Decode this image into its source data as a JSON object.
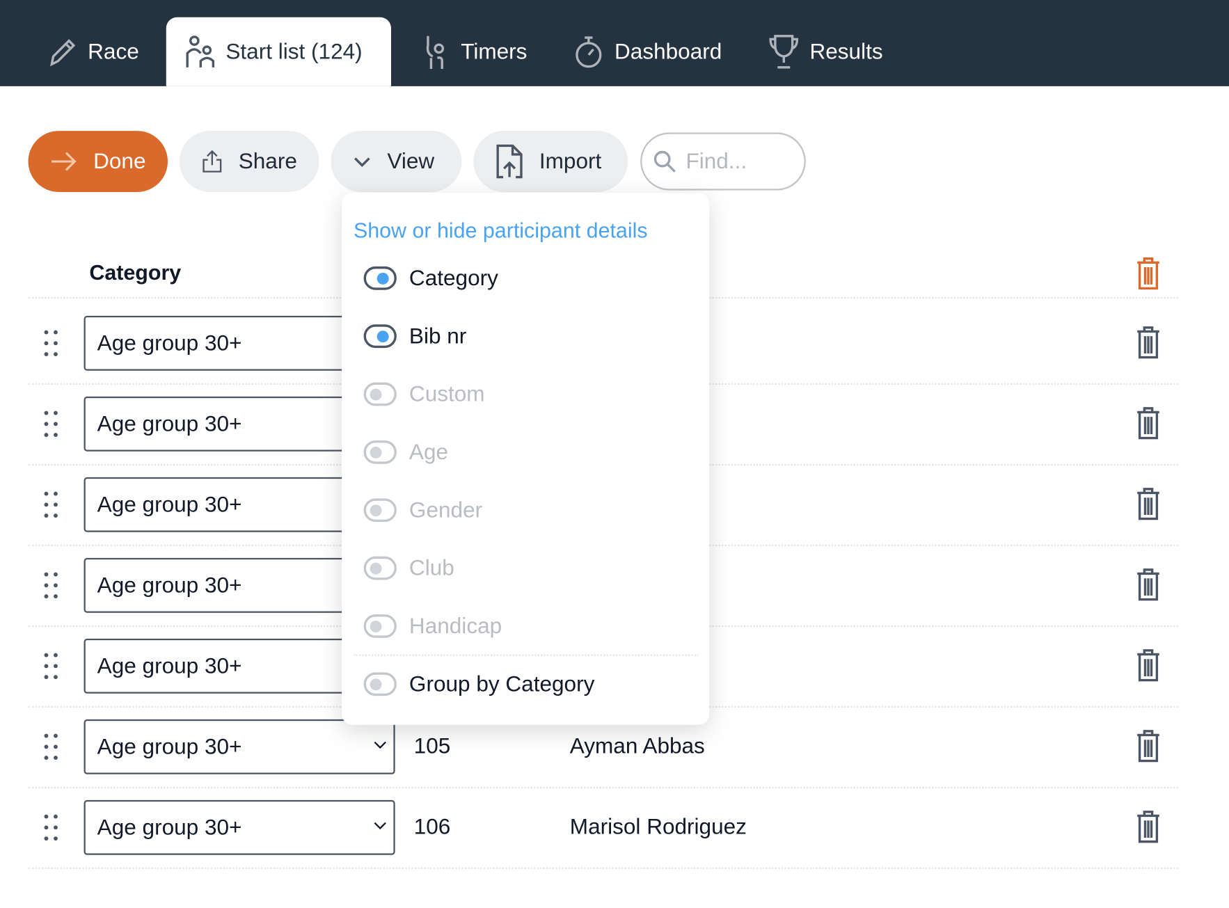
{
  "nav": {
    "tabs": [
      {
        "label": "Race",
        "icon": "pencil-icon"
      },
      {
        "label": "Start list (124)",
        "icon": "people-icon",
        "active": true
      },
      {
        "label": "Timers",
        "icon": "runner-icon"
      },
      {
        "label": "Dashboard",
        "icon": "stopwatch-icon"
      },
      {
        "label": "Results",
        "icon": "trophy-icon"
      }
    ]
  },
  "toolbar": {
    "done": "Done",
    "share": "Share",
    "view": "View",
    "import": "Import",
    "find_placeholder": "Find..."
  },
  "colors": {
    "accent": "#D96A2B",
    "nav": "#253240",
    "link": "#4AA3F0"
  },
  "table": {
    "header_category": "Category",
    "rows": [
      {
        "category": "Age group 30+"
      },
      {
        "category": "Age group 30+"
      },
      {
        "category": "Age group 30+"
      },
      {
        "category": "Age group 30+"
      },
      {
        "category": "Age group 30+"
      },
      {
        "category": "Age group 30+",
        "bib": "105",
        "name": "Ayman Abbas"
      },
      {
        "category": "Age group 30+",
        "bib": "106",
        "name": "Marisol Rodriguez"
      }
    ]
  },
  "view_menu": {
    "title": "Show or hide participant details",
    "options": [
      {
        "label": "Category",
        "on": true
      },
      {
        "label": "Bib nr",
        "on": true
      },
      {
        "label": "Custom",
        "on": false
      },
      {
        "label": "Age",
        "on": false
      },
      {
        "label": "Gender",
        "on": false
      },
      {
        "label": "Club",
        "on": false
      },
      {
        "label": "Handicap",
        "on": false
      }
    ],
    "group_by": {
      "label": "Group by Category",
      "on": false
    }
  }
}
